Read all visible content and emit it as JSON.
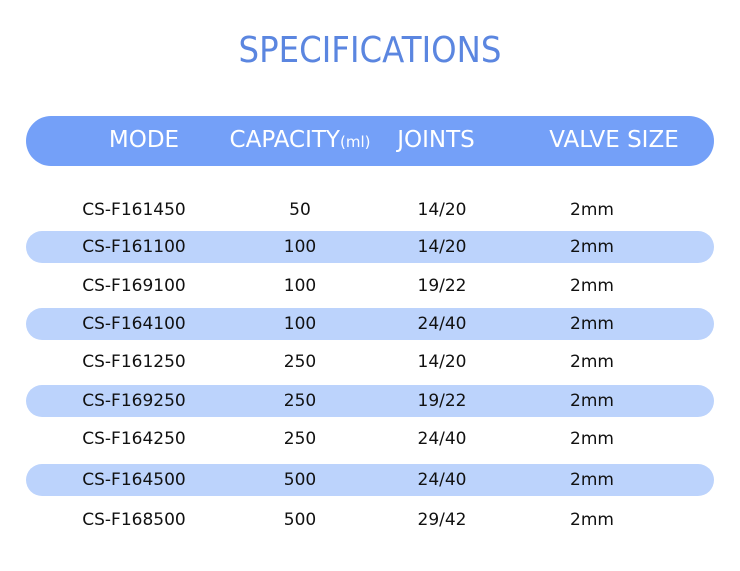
{
  "title": "SPECIFICATIONS",
  "colors": {
    "title": "#5b86e0",
    "header_bg": "#74a0f8",
    "stripe": "#bcd3fc"
  },
  "header": {
    "mode": "MODE",
    "capacity": "CAPACITY",
    "capacity_unit": "(ml)",
    "joints": "JOINTS",
    "valve_size": "VALVE SIZE"
  },
  "rows": [
    {
      "mode": "CS-F161450",
      "capacity": "50",
      "joints": "14/20",
      "valve": "2mm"
    },
    {
      "mode": "CS-F161100",
      "capacity": "100",
      "joints": "14/20",
      "valve": "2mm"
    },
    {
      "mode": "CS-F169100",
      "capacity": "100",
      "joints": "19/22",
      "valve": "2mm"
    },
    {
      "mode": "CS-F164100",
      "capacity": "100",
      "joints": "24/40",
      "valve": "2mm"
    },
    {
      "mode": "CS-F161250",
      "capacity": "250",
      "joints": "14/20",
      "valve": "2mm"
    },
    {
      "mode": "CS-F169250",
      "capacity": "250",
      "joints": "19/22",
      "valve": "2mm"
    },
    {
      "mode": "CS-F164250",
      "capacity": "250",
      "joints": "24/40",
      "valve": "2mm"
    },
    {
      "mode": "CS-F164500",
      "capacity": "500",
      "joints": "24/40",
      "valve": "2mm"
    },
    {
      "mode": "CS-F168500",
      "capacity": "500",
      "joints": "29/42",
      "valve": "2mm"
    }
  ]
}
